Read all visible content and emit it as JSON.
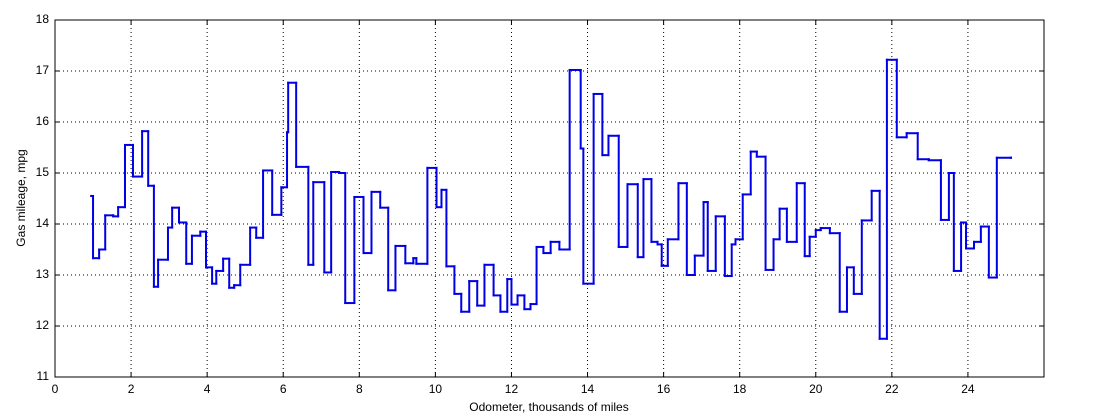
{
  "chart_data": {
    "type": "stairs",
    "xlabel": "Odometer, thousands of miles",
    "ylabel": "Gas mileage, mpg",
    "x": [
      0.95,
      1.0,
      1.16,
      1.32,
      1.53,
      1.66,
      1.84,
      2.05,
      2.29,
      2.45,
      2.6,
      2.71,
      2.97,
      3.08,
      3.26,
      3.45,
      3.6,
      3.82,
      3.97,
      4.13,
      4.24,
      4.42,
      4.58,
      4.71,
      4.87,
      5.13,
      5.29,
      5.47,
      5.71,
      5.95,
      6.1,
      6.13,
      6.34,
      6.66,
      6.79,
      7.08,
      7.26,
      7.47,
      7.63,
      7.87,
      8.11,
      8.32,
      8.55,
      8.76,
      8.95,
      9.21,
      9.42,
      9.5,
      9.79,
      10.03,
      10.16,
      10.29,
      10.5,
      10.68,
      10.89,
      11.1,
      11.29,
      11.53,
      11.71,
      11.89,
      12.0,
      12.16,
      12.34,
      12.5,
      12.66,
      12.84,
      13.03,
      13.26,
      13.53,
      13.82,
      13.89,
      14.16,
      14.39,
      14.55,
      14.82,
      15.05,
      15.32,
      15.47,
      15.68,
      15.84,
      15.95,
      16.11,
      16.39,
      16.61,
      16.82,
      17.05,
      17.16,
      17.37,
      17.61,
      17.79,
      17.89,
      18.08,
      18.29,
      18.45,
      18.68,
      18.89,
      19.05,
      19.24,
      19.5,
      19.71,
      19.84,
      20.0,
      20.13,
      20.37,
      20.63,
      20.82,
      21.0,
      21.21,
      21.47,
      21.68,
      21.87,
      22.13,
      22.39,
      22.68,
      22.97,
      23.29,
      23.5,
      23.63,
      23.82,
      23.95,
      24.16,
      24.34,
      24.55,
      24.76,
      25.13
    ],
    "series": [
      {
        "name": "Gas mileage",
        "color": "#0000e6",
        "values": [
          14.55,
          13.33,
          13.5,
          14.17,
          14.15,
          14.33,
          15.55,
          14.93,
          15.82,
          14.75,
          12.77,
          13.3,
          13.93,
          14.32,
          14.03,
          13.22,
          13.77,
          13.85,
          13.15,
          12.83,
          13.08,
          13.32,
          12.75,
          12.8,
          13.2,
          13.93,
          13.73,
          15.05,
          14.18,
          14.72,
          15.8,
          16.77,
          15.12,
          13.2,
          14.82,
          13.05,
          15.02,
          15.0,
          12.45,
          14.53,
          13.43,
          14.63,
          14.32,
          12.7,
          13.57,
          13.23,
          13.33,
          13.22,
          15.1,
          14.33,
          14.67,
          13.17,
          12.63,
          12.28,
          12.88,
          12.4,
          13.2,
          12.6,
          12.28,
          12.92,
          12.42,
          12.6,
          12.33,
          12.43,
          13.55,
          13.43,
          13.65,
          13.5,
          17.02,
          15.48,
          12.83,
          16.55,
          15.35,
          15.73,
          13.55,
          14.78,
          13.35,
          14.88,
          13.65,
          13.6,
          13.18,
          13.7,
          14.8,
          13.0,
          13.38,
          14.43,
          13.08,
          14.15,
          12.98,
          13.6,
          13.7,
          14.58,
          15.42,
          15.32,
          13.1,
          13.7,
          14.3,
          13.65,
          14.8,
          13.37,
          13.75,
          13.88,
          13.92,
          13.82,
          12.28,
          13.15,
          12.63,
          14.07,
          14.65,
          11.75,
          17.22,
          15.7,
          15.78,
          15.27,
          15.25,
          14.08,
          15.0,
          13.08,
          14.03,
          13.52,
          13.65,
          13.95,
          12.95,
          15.3,
          15.3
        ]
      }
    ],
    "xlim": [
      0,
      26
    ],
    "xticks": [
      0,
      2,
      4,
      6,
      8,
      10,
      12,
      14,
      16,
      18,
      20,
      22,
      24
    ],
    "ylim": [
      11,
      18
    ],
    "yticks": [
      11,
      12,
      13,
      14,
      15,
      16,
      17,
      18
    ],
    "grid": true
  }
}
